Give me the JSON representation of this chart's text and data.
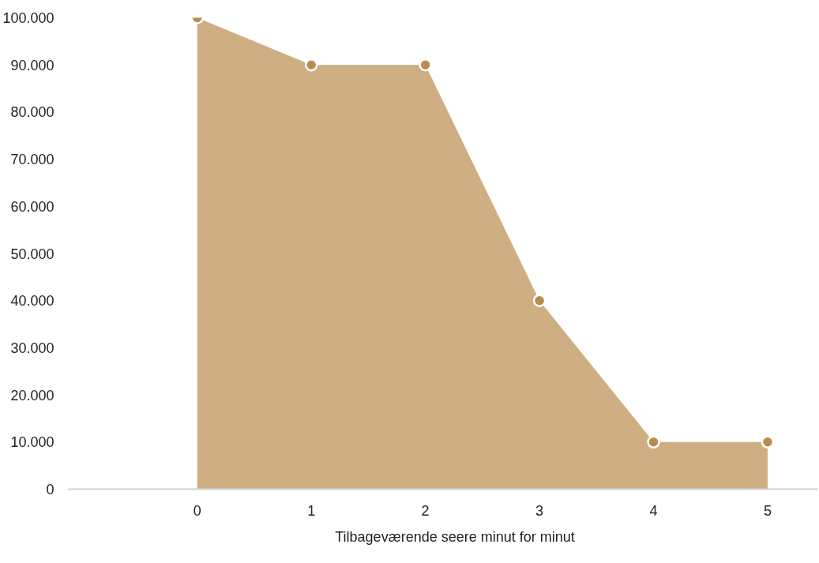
{
  "chart_data": {
    "type": "area",
    "x": [
      0,
      1,
      2,
      3,
      4,
      5
    ],
    "series": [
      {
        "name": "Tilbageværende seere minut for minut",
        "color": "#b98c4d",
        "values": [
          100000,
          90000,
          90000,
          40000,
          10000,
          10000
        ]
      }
    ],
    "xlim": [
      -1.13,
      5.44
    ],
    "xticks": [
      0,
      1,
      2,
      3,
      4,
      5
    ],
    "ylim": [
      0,
      100000
    ],
    "yticks": [
      {
        "value": 0,
        "label": "0"
      },
      {
        "value": 10000,
        "label": "10.000"
      },
      {
        "value": 20000,
        "label": "20.000"
      },
      {
        "value": 30000,
        "label": "30.000"
      },
      {
        "value": 40000,
        "label": "40.000"
      },
      {
        "value": 50000,
        "label": "50.000"
      },
      {
        "value": 60000,
        "label": "60.000"
      },
      {
        "value": 70000,
        "label": "70.000"
      },
      {
        "value": 80000,
        "label": "80.000"
      },
      {
        "value": 90000,
        "label": "90.000"
      },
      {
        "value": 100000,
        "label": "100.000"
      }
    ],
    "marker": "circle",
    "grid": false,
    "legend": "bottom"
  }
}
